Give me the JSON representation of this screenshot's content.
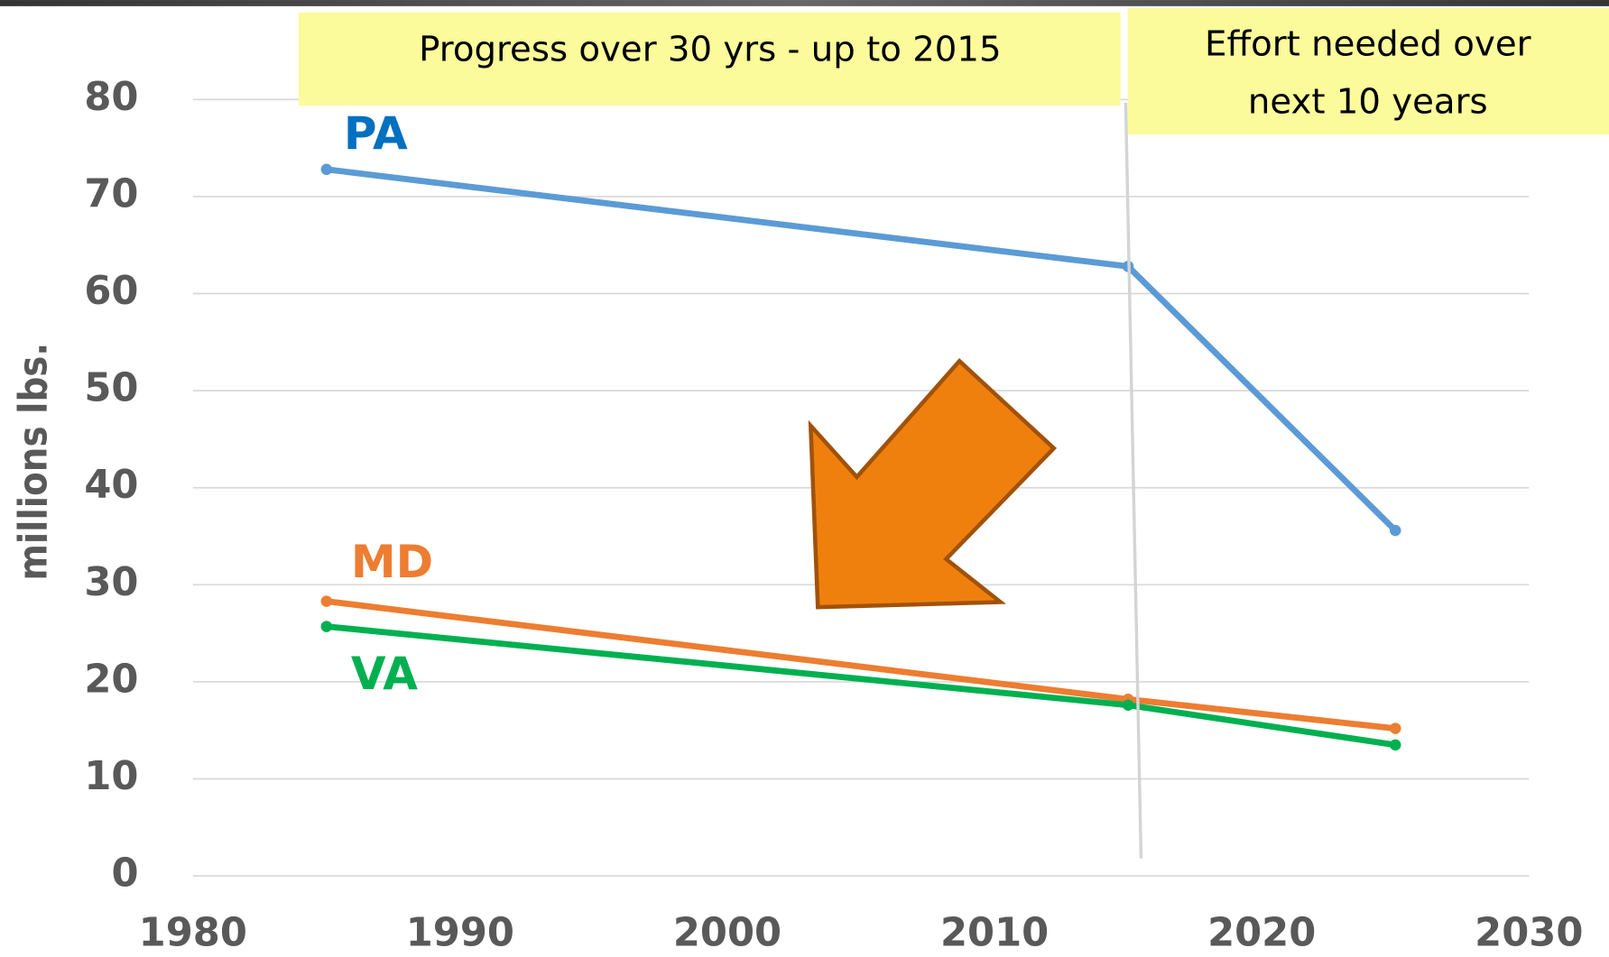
{
  "chart_data": {
    "type": "line",
    "y_label": "millions lbs.",
    "annotations": [
      "Progress over 30 yrs - up to 2015",
      [
        "Effort needed over",
        "next 10 years"
      ]
    ],
    "x": [
      1985,
      2015,
      2025
    ],
    "series": [
      {
        "name": "PA",
        "color": "#5b9bd5",
        "label_color": "#0070c0",
        "values": [
          72.8,
          62.8,
          35.6
        ]
      },
      {
        "name": "MD",
        "color": "#ed7d31",
        "label_color": "#ed7d31",
        "values": [
          28.3,
          18.2,
          15.2
        ]
      },
      {
        "name": "VA",
        "color": "#00b050",
        "label_color": "#00b050",
        "values": [
          25.7,
          17.6,
          13.5
        ]
      }
    ],
    "xlim": [
      1980,
      2030
    ],
    "xticks": [
      1980,
      1990,
      2000,
      2010,
      2020,
      2030
    ],
    "ylim": [
      0,
      80
    ],
    "yticks": [
      0,
      10,
      20,
      30,
      40,
      50,
      60,
      70,
      80
    ],
    "grid": true
  }
}
